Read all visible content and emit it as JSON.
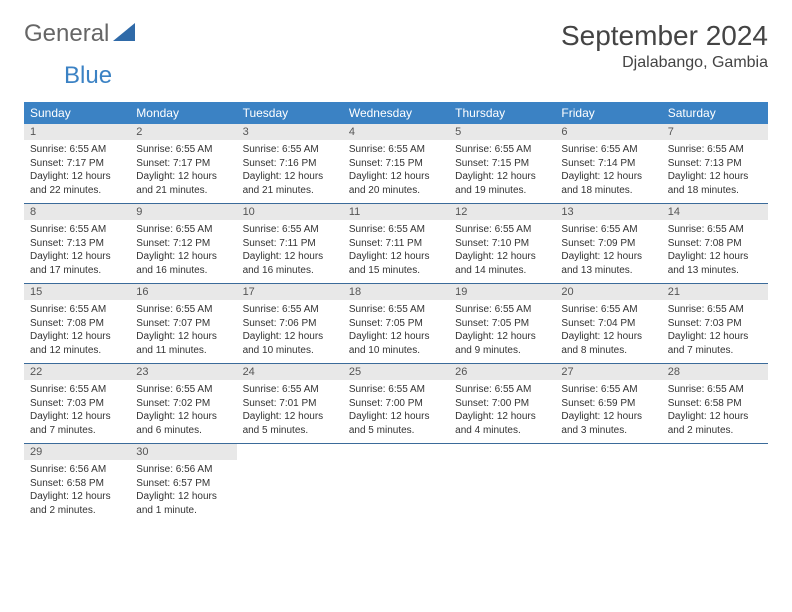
{
  "logo": {
    "text1": "General",
    "text2": "Blue",
    "icon_color": "#2f6aa8"
  },
  "title": "September 2024",
  "location": "Djalabango, Gambia",
  "colors": {
    "header_bg": "#3b82c4",
    "header_text": "#ffffff",
    "daynum_bg": "#e8e8e8",
    "row_border": "#3b6b9a",
    "background": "#ffffff"
  },
  "weekdays": [
    "Sunday",
    "Monday",
    "Tuesday",
    "Wednesday",
    "Thursday",
    "Friday",
    "Saturday"
  ],
  "weeks": [
    [
      {
        "n": "1",
        "sr": "Sunrise: 6:55 AM",
        "ss": "Sunset: 7:17 PM",
        "d1": "Daylight: 12 hours",
        "d2": "and 22 minutes."
      },
      {
        "n": "2",
        "sr": "Sunrise: 6:55 AM",
        "ss": "Sunset: 7:17 PM",
        "d1": "Daylight: 12 hours",
        "d2": "and 21 minutes."
      },
      {
        "n": "3",
        "sr": "Sunrise: 6:55 AM",
        "ss": "Sunset: 7:16 PM",
        "d1": "Daylight: 12 hours",
        "d2": "and 21 minutes."
      },
      {
        "n": "4",
        "sr": "Sunrise: 6:55 AM",
        "ss": "Sunset: 7:15 PM",
        "d1": "Daylight: 12 hours",
        "d2": "and 20 minutes."
      },
      {
        "n": "5",
        "sr": "Sunrise: 6:55 AM",
        "ss": "Sunset: 7:15 PM",
        "d1": "Daylight: 12 hours",
        "d2": "and 19 minutes."
      },
      {
        "n": "6",
        "sr": "Sunrise: 6:55 AM",
        "ss": "Sunset: 7:14 PM",
        "d1": "Daylight: 12 hours",
        "d2": "and 18 minutes."
      },
      {
        "n": "7",
        "sr": "Sunrise: 6:55 AM",
        "ss": "Sunset: 7:13 PM",
        "d1": "Daylight: 12 hours",
        "d2": "and 18 minutes."
      }
    ],
    [
      {
        "n": "8",
        "sr": "Sunrise: 6:55 AM",
        "ss": "Sunset: 7:13 PM",
        "d1": "Daylight: 12 hours",
        "d2": "and 17 minutes."
      },
      {
        "n": "9",
        "sr": "Sunrise: 6:55 AM",
        "ss": "Sunset: 7:12 PM",
        "d1": "Daylight: 12 hours",
        "d2": "and 16 minutes."
      },
      {
        "n": "10",
        "sr": "Sunrise: 6:55 AM",
        "ss": "Sunset: 7:11 PM",
        "d1": "Daylight: 12 hours",
        "d2": "and 16 minutes."
      },
      {
        "n": "11",
        "sr": "Sunrise: 6:55 AM",
        "ss": "Sunset: 7:11 PM",
        "d1": "Daylight: 12 hours",
        "d2": "and 15 minutes."
      },
      {
        "n": "12",
        "sr": "Sunrise: 6:55 AM",
        "ss": "Sunset: 7:10 PM",
        "d1": "Daylight: 12 hours",
        "d2": "and 14 minutes."
      },
      {
        "n": "13",
        "sr": "Sunrise: 6:55 AM",
        "ss": "Sunset: 7:09 PM",
        "d1": "Daylight: 12 hours",
        "d2": "and 13 minutes."
      },
      {
        "n": "14",
        "sr": "Sunrise: 6:55 AM",
        "ss": "Sunset: 7:08 PM",
        "d1": "Daylight: 12 hours",
        "d2": "and 13 minutes."
      }
    ],
    [
      {
        "n": "15",
        "sr": "Sunrise: 6:55 AM",
        "ss": "Sunset: 7:08 PM",
        "d1": "Daylight: 12 hours",
        "d2": "and 12 minutes."
      },
      {
        "n": "16",
        "sr": "Sunrise: 6:55 AM",
        "ss": "Sunset: 7:07 PM",
        "d1": "Daylight: 12 hours",
        "d2": "and 11 minutes."
      },
      {
        "n": "17",
        "sr": "Sunrise: 6:55 AM",
        "ss": "Sunset: 7:06 PM",
        "d1": "Daylight: 12 hours",
        "d2": "and 10 minutes."
      },
      {
        "n": "18",
        "sr": "Sunrise: 6:55 AM",
        "ss": "Sunset: 7:05 PM",
        "d1": "Daylight: 12 hours",
        "d2": "and 10 minutes."
      },
      {
        "n": "19",
        "sr": "Sunrise: 6:55 AM",
        "ss": "Sunset: 7:05 PM",
        "d1": "Daylight: 12 hours",
        "d2": "and 9 minutes."
      },
      {
        "n": "20",
        "sr": "Sunrise: 6:55 AM",
        "ss": "Sunset: 7:04 PM",
        "d1": "Daylight: 12 hours",
        "d2": "and 8 minutes."
      },
      {
        "n": "21",
        "sr": "Sunrise: 6:55 AM",
        "ss": "Sunset: 7:03 PM",
        "d1": "Daylight: 12 hours",
        "d2": "and 7 minutes."
      }
    ],
    [
      {
        "n": "22",
        "sr": "Sunrise: 6:55 AM",
        "ss": "Sunset: 7:03 PM",
        "d1": "Daylight: 12 hours",
        "d2": "and 7 minutes."
      },
      {
        "n": "23",
        "sr": "Sunrise: 6:55 AM",
        "ss": "Sunset: 7:02 PM",
        "d1": "Daylight: 12 hours",
        "d2": "and 6 minutes."
      },
      {
        "n": "24",
        "sr": "Sunrise: 6:55 AM",
        "ss": "Sunset: 7:01 PM",
        "d1": "Daylight: 12 hours",
        "d2": "and 5 minutes."
      },
      {
        "n": "25",
        "sr": "Sunrise: 6:55 AM",
        "ss": "Sunset: 7:00 PM",
        "d1": "Daylight: 12 hours",
        "d2": "and 5 minutes."
      },
      {
        "n": "26",
        "sr": "Sunrise: 6:55 AM",
        "ss": "Sunset: 7:00 PM",
        "d1": "Daylight: 12 hours",
        "d2": "and 4 minutes."
      },
      {
        "n": "27",
        "sr": "Sunrise: 6:55 AM",
        "ss": "Sunset: 6:59 PM",
        "d1": "Daylight: 12 hours",
        "d2": "and 3 minutes."
      },
      {
        "n": "28",
        "sr": "Sunrise: 6:55 AM",
        "ss": "Sunset: 6:58 PM",
        "d1": "Daylight: 12 hours",
        "d2": "and 2 minutes."
      }
    ],
    [
      {
        "n": "29",
        "sr": "Sunrise: 6:56 AM",
        "ss": "Sunset: 6:58 PM",
        "d1": "Daylight: 12 hours",
        "d2": "and 2 minutes."
      },
      {
        "n": "30",
        "sr": "Sunrise: 6:56 AM",
        "ss": "Sunset: 6:57 PM",
        "d1": "Daylight: 12 hours",
        "d2": "and 1 minute."
      },
      null,
      null,
      null,
      null,
      null
    ]
  ]
}
